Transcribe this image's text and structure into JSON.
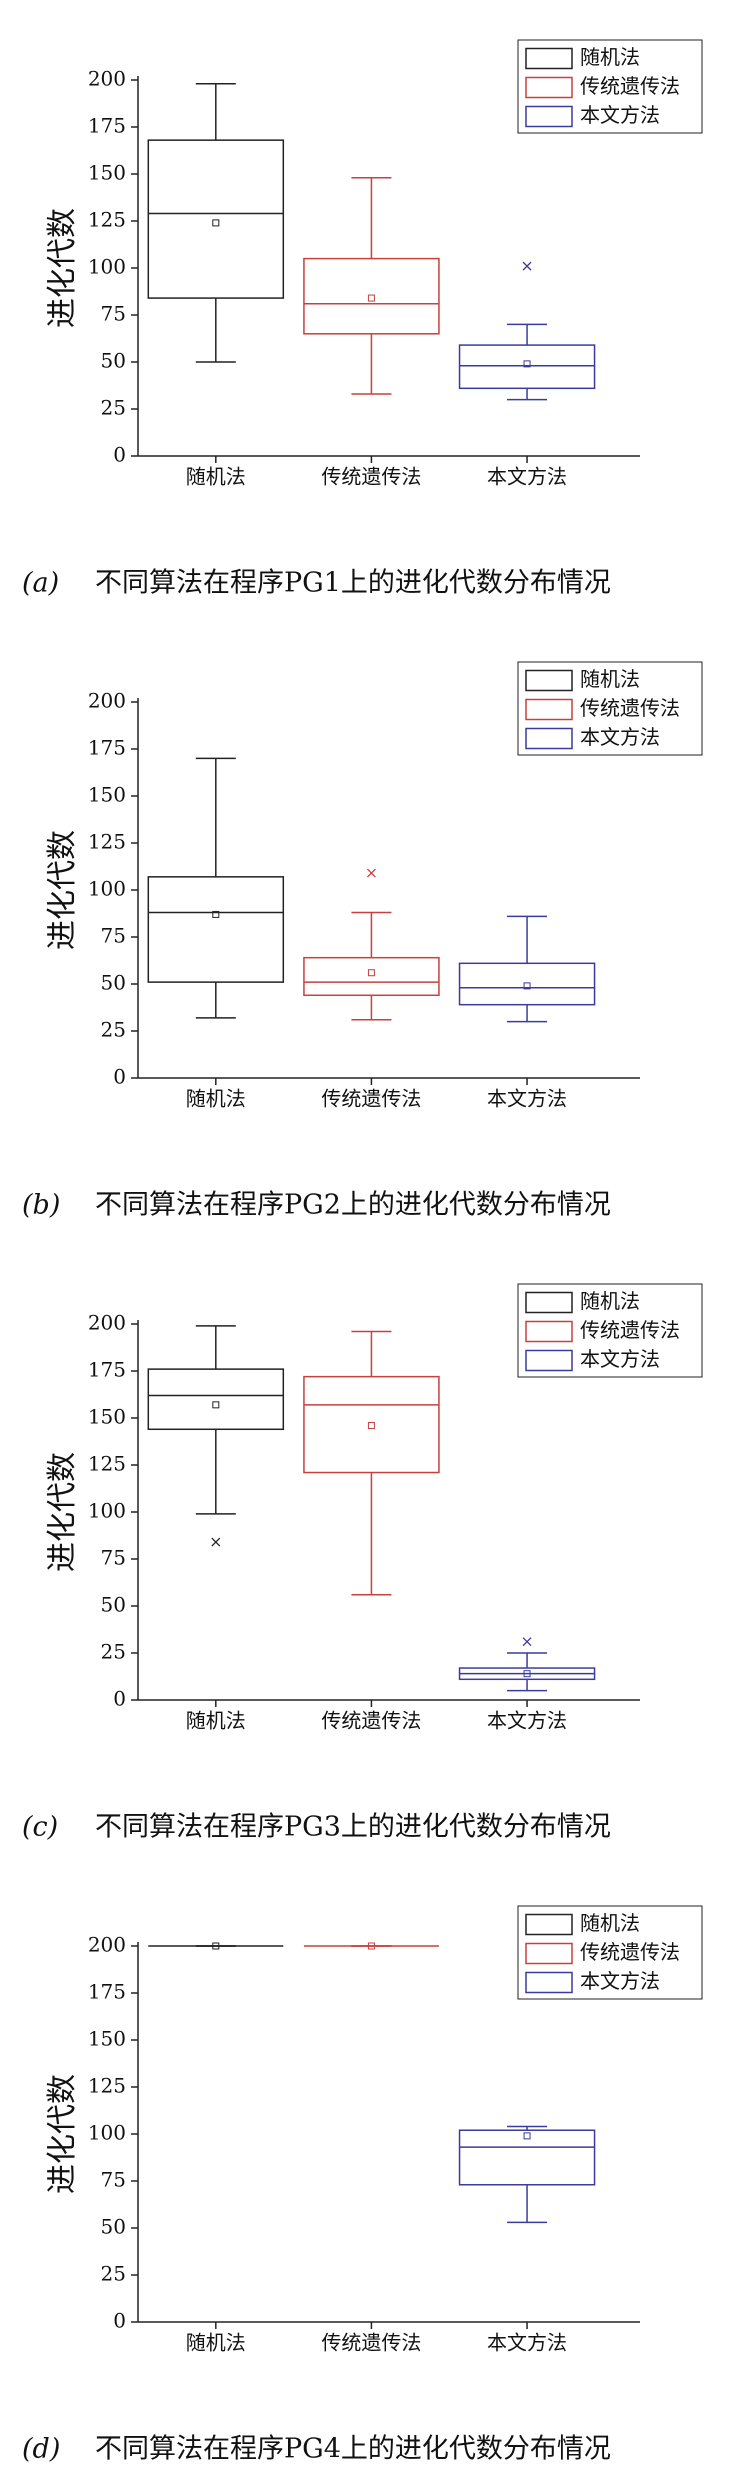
{
  "chart_data": [
    {
      "type": "box",
      "ylabel": "进化代数",
      "caption_label": "(a)",
      "caption": "不同算法在程序PG1上的进化代数分布情况",
      "categories": [
        "随机法",
        "传统遗传法",
        "本文方法"
      ],
      "ylim": [
        0,
        200
      ],
      "yticks": [
        0,
        25,
        50,
        75,
        100,
        125,
        150,
        175,
        200
      ],
      "series": [
        {
          "name": "随机法",
          "color": "#222222",
          "min": 50,
          "q1": 84,
          "median": 129,
          "q3": 168,
          "max": 198,
          "mean": 124
        },
        {
          "name": "传统遗传法",
          "color": "#c8403c",
          "min": 33,
          "q1": 65,
          "median": 81,
          "q3": 105,
          "max": 148,
          "mean": 84
        },
        {
          "name": "本文方法",
          "color": "#3b3b9e",
          "min": 30,
          "q1": 36,
          "median": 48,
          "q3": 59,
          "max": 70,
          "mean": 49,
          "outliers": [
            101
          ]
        }
      ]
    },
    {
      "type": "box",
      "ylabel": "进化代数",
      "caption_label": "(b)",
      "caption": "不同算法在程序PG2上的进化代数分布情况",
      "categories": [
        "随机法",
        "传统遗传法",
        "本文方法"
      ],
      "ylim": [
        0,
        200
      ],
      "yticks": [
        0,
        25,
        50,
        75,
        100,
        125,
        150,
        175,
        200
      ],
      "series": [
        {
          "name": "随机法",
          "color": "#222222",
          "min": 32,
          "q1": 51,
          "median": 88,
          "q3": 107,
          "max": 170,
          "mean": 87
        },
        {
          "name": "传统遗传法",
          "color": "#c8403c",
          "min": 31,
          "q1": 44,
          "median": 51,
          "q3": 64,
          "max": 88,
          "mean": 56,
          "outliers": [
            109
          ]
        },
        {
          "name": "本文方法",
          "color": "#3b3b9e",
          "min": 30,
          "q1": 39,
          "median": 48,
          "q3": 61,
          "max": 86,
          "mean": 49
        }
      ]
    },
    {
      "type": "box",
      "ylabel": "进化代数",
      "caption_label": "(c)",
      "caption": "不同算法在程序PG3上的进化代数分布情况",
      "categories": [
        "随机法",
        "传统遗传法",
        "本文方法"
      ],
      "ylim": [
        0,
        200
      ],
      "yticks": [
        0,
        25,
        50,
        75,
        100,
        125,
        150,
        175,
        200
      ],
      "series": [
        {
          "name": "随机法",
          "color": "#222222",
          "min": 99,
          "q1": 144,
          "median": 162,
          "q3": 176,
          "max": 199,
          "mean": 157,
          "outliers": [
            84
          ]
        },
        {
          "name": "传统遗传法",
          "color": "#c8403c",
          "min": 56,
          "q1": 121,
          "median": 157,
          "q3": 172,
          "max": 196,
          "mean": 146
        },
        {
          "name": "本文方法",
          "color": "#3b3b9e",
          "min": 5,
          "q1": 11,
          "median": 14,
          "q3": 17,
          "max": 25,
          "mean": 14,
          "outliers": [
            31
          ]
        }
      ]
    },
    {
      "type": "box",
      "ylabel": "进化代数",
      "caption_label": "(d)",
      "caption": "不同算法在程序PG4上的进化代数分布情况",
      "categories": [
        "随机法",
        "传统遗传法",
        "本文方法"
      ],
      "ylim": [
        0,
        200
      ],
      "yticks": [
        0,
        25,
        50,
        75,
        100,
        125,
        150,
        175,
        200
      ],
      "series": [
        {
          "name": "随机法",
          "color": "#222222",
          "min": 200,
          "q1": 200,
          "median": 200,
          "q3": 200,
          "max": 200,
          "mean": 200
        },
        {
          "name": "传统遗传法",
          "color": "#c8403c",
          "min": 200,
          "q1": 200,
          "median": 200,
          "q3": 200,
          "max": 200,
          "mean": 200
        },
        {
          "name": "本文方法",
          "color": "#3b3b9e",
          "min": 53,
          "q1": 73,
          "median": 93,
          "q3": 102,
          "max": 104,
          "mean": 99
        }
      ]
    }
  ]
}
